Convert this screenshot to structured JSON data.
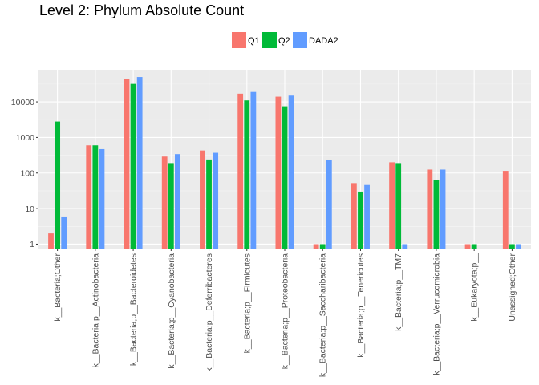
{
  "chart_data": {
    "type": "bar",
    "title": "Level 2: Phylum Absolute Count",
    "xlabel": "",
    "ylabel": "",
    "y_scale": "log10",
    "ylim": [
      0.75,
      80000
    ],
    "yticks": [
      1,
      10,
      100,
      1000,
      10000
    ],
    "ytick_labels": [
      "1",
      "10",
      "100",
      "1000",
      "10000"
    ],
    "grid": true,
    "legend_position": "top",
    "categories": [
      "k__Bacteria;Other",
      "k__Bacteria;p__Actinobacteria",
      "k__Bacteria;p__Bacteroidetes",
      "k__Bacteria;p__Cyanobacteria",
      "k__Bacteria;p__Deferribacteres",
      "k__Bacteria;p__Firmicutes",
      "k__Bacteria;p__Proteobacteria",
      "k__Bacteria;p__Saccharibacteria",
      "k__Bacteria;p__Tenericutes",
      "k__Bacteria;p__TM7",
      "k__Bacteria;p__Verrucomicrobia",
      "k__Eukaryota;p__",
      "Unassigned;Other"
    ],
    "series": [
      {
        "name": "Q1",
        "color": "#F8766D",
        "values": [
          2,
          600,
          45000,
          290,
          430,
          17000,
          14000,
          1,
          52,
          200,
          125,
          1,
          115
        ]
      },
      {
        "name": "Q2",
        "color": "#00BA38",
        "values": [
          2800,
          600,
          32000,
          190,
          240,
          11000,
          7500,
          1,
          30,
          190,
          62,
          1,
          1
        ]
      },
      {
        "name": "DADA2",
        "color": "#619CFF",
        "values": [
          6,
          470,
          50000,
          340,
          370,
          19000,
          15000,
          235,
          46,
          1,
          125,
          null,
          1
        ]
      }
    ]
  }
}
